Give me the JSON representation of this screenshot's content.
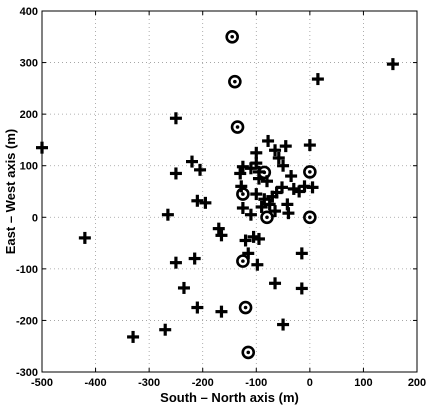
{
  "chart_data": {
    "type": "scatter",
    "xlabel": "South – North axis (m)",
    "ylabel": "East – West axis (m)",
    "xlim": [
      -500,
      200
    ],
    "ylim": [
      -300,
      400
    ],
    "xticks": [
      -500,
      -400,
      -300,
      -200,
      -100,
      0,
      100,
      200
    ],
    "yticks": [
      -300,
      -200,
      -100,
      0,
      100,
      200,
      300,
      400
    ],
    "grid": true,
    "series": [
      {
        "marker": "plus",
        "points": [
          [
            -500,
            135
          ],
          [
            -420,
            -40
          ],
          [
            -330,
            -232
          ],
          [
            -270,
            -218
          ],
          [
            -265,
            5
          ],
          [
            -250,
            192
          ],
          [
            -250,
            85
          ],
          [
            -250,
            -88
          ],
          [
            -235,
            -137
          ],
          [
            -220,
            108
          ],
          [
            -215,
            -80
          ],
          [
            -210,
            -175
          ],
          [
            -210,
            32
          ],
          [
            -205,
            92
          ],
          [
            -195,
            28
          ],
          [
            -170,
            -22
          ],
          [
            -165,
            -35
          ],
          [
            -165,
            -183
          ],
          [
            -130,
            85
          ],
          [
            -128,
            60
          ],
          [
            -125,
            18
          ],
          [
            -125,
            98
          ],
          [
            -120,
            -45
          ],
          [
            -115,
            -70
          ],
          [
            -110,
            95
          ],
          [
            -110,
            5
          ],
          [
            -105,
            -38
          ],
          [
            -100,
            125
          ],
          [
            -100,
            105
          ],
          [
            -100,
            45
          ],
          [
            -98,
            -92
          ],
          [
            -95,
            88
          ],
          [
            -95,
            75
          ],
          [
            -95,
            -42
          ],
          [
            -90,
            20
          ],
          [
            -85,
            35
          ],
          [
            -80,
            70
          ],
          [
            -78,
            148
          ],
          [
            -75,
            25
          ],
          [
            -70,
            40
          ],
          [
            -65,
            12
          ],
          [
            -65,
            130
          ],
          [
            -65,
            -128
          ],
          [
            -62,
            48
          ],
          [
            -58,
            115
          ],
          [
            -52,
            58
          ],
          [
            -50,
            -208
          ],
          [
            -50,
            100
          ],
          [
            -45,
            138
          ],
          [
            -42,
            25
          ],
          [
            -40,
            8
          ],
          [
            -35,
            80
          ],
          [
            -30,
            55
          ],
          [
            -20,
            50
          ],
          [
            -15,
            -138
          ],
          [
            -15,
            -70
          ],
          [
            -10,
            60
          ],
          [
            0,
            140
          ],
          [
            5,
            58
          ],
          [
            15,
            268
          ],
          [
            155,
            297
          ]
        ]
      },
      {
        "marker": "circle-dot",
        "points": [
          [
            -145,
            350
          ],
          [
            -140,
            263
          ],
          [
            -135,
            175
          ],
          [
            -125,
            45
          ],
          [
            -125,
            -85
          ],
          [
            -120,
            -175
          ],
          [
            -115,
            -262
          ],
          [
            -85,
            87
          ],
          [
            -80,
            0
          ],
          [
            0,
            88
          ],
          [
            0,
            0
          ]
        ]
      }
    ]
  }
}
